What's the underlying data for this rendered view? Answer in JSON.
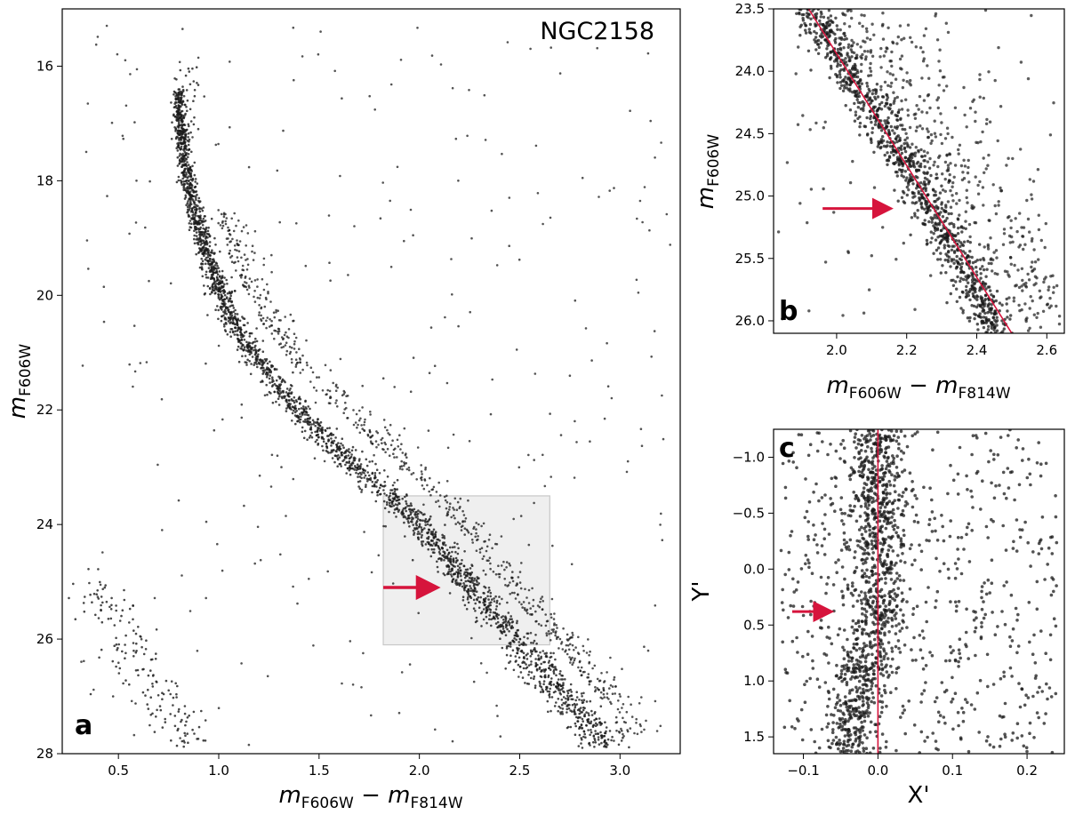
{
  "chart_data": [
    {
      "panel": "a",
      "type": "scatter",
      "title": "NGC2158",
      "xlabel": "m_F606W − m_F814W",
      "ylabel": "m_F606W",
      "xlim": [
        0.22,
        3.3
      ],
      "ylim": [
        28,
        15.0
      ],
      "y_inverted": true,
      "xticks": [
        "0.5",
        "1.0",
        "1.5",
        "2.0",
        "2.5",
        "3.0"
      ],
      "yticks": [
        "16",
        "18",
        "20",
        "22",
        "24",
        "26",
        "28"
      ],
      "sequence_ridge": {
        "x": [
          0.8,
          0.82,
          0.88,
          0.95,
          1.05,
          1.17,
          1.32,
          1.5,
          1.72,
          1.95,
          2.15,
          2.35,
          2.55,
          2.75,
          2.92
        ],
        "y": [
          16.5,
          17.5,
          18.5,
          19.4,
          20.3,
          21.0,
          21.7,
          22.4,
          23.1,
          23.8,
          24.6,
          25.5,
          26.3,
          27.1,
          27.8
        ]
      },
      "highlight_box": {
        "x": [
          1.82,
          2.65
        ],
        "y": [
          23.5,
          26.1
        ]
      },
      "arrow": {
        "from": [
          1.82,
          25.1
        ],
        "to": [
          2.12,
          25.1
        ]
      },
      "colors": {
        "points": "#1a1a1a",
        "arrow": "#d6143c",
        "box": "#e6e6e6"
      }
    },
    {
      "panel": "b",
      "type": "scatter",
      "xlabel": "m_F606W − m_F814W",
      "ylabel": "m_F606W",
      "xlim": [
        1.82,
        2.65
      ],
      "ylim": [
        26.1,
        23.5
      ],
      "y_inverted": true,
      "xticks": [
        "2.0",
        "2.2",
        "2.4",
        "2.6"
      ],
      "yticks": [
        "23.5",
        "24.0",
        "24.5",
        "25.0",
        "25.5",
        "26.0"
      ],
      "fiducial_line": {
        "x": [
          1.92,
          2.5
        ],
        "y": [
          23.5,
          26.1
        ]
      },
      "arrow": {
        "from": [
          1.96,
          25.1
        ],
        "to": [
          2.17,
          25.1
        ]
      },
      "colors": {
        "points": "#1a1a1a",
        "line": "#d6143c",
        "arrow": "#d6143c"
      }
    },
    {
      "panel": "c",
      "type": "scatter",
      "xlabel": "X'",
      "ylabel": "Y'",
      "xlim": [
        -0.14,
        0.25
      ],
      "ylim": [
        1.65,
        -1.25
      ],
      "y_inverted": true,
      "xticks": [
        "−0.1",
        "0.0",
        "0.1",
        "0.2"
      ],
      "yticks": [
        "−1.0",
        "−0.5",
        "0.0",
        "0.5",
        "1.0",
        "1.5"
      ],
      "vertical_line_x": 0.0,
      "arrow": {
        "from": [
          -0.115,
          0.38
        ],
        "to": [
          -0.055,
          0.38
        ]
      },
      "colors": {
        "points": "#1a1a1a",
        "line": "#d6143c",
        "arrow": "#d6143c"
      }
    }
  ]
}
